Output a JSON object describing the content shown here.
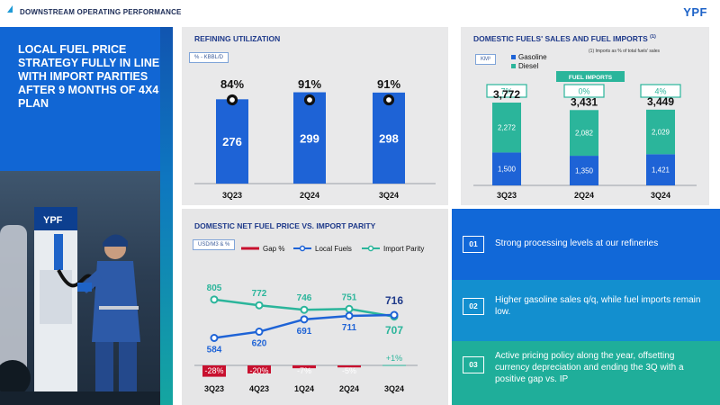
{
  "header": {
    "title": "DOWNSTREAM OPERATING PERFORMANCE",
    "logo": "YPF"
  },
  "headline": "LOCAL FUEL PRICE STRATEGY FULLY IN LINE WITH IMPORT PARITIES AFTER 9 MONTHS OF 4X4 PLAN",
  "photo": {
    "pump_brand": "YPF"
  },
  "colors": {
    "brand_blue": "#1166d4",
    "bar_blue": "#1e63d6",
    "teal": "#2bb59b",
    "red": "#c8102e",
    "panel_gray": "#e9e9ea"
  },
  "refining": {
    "title": "REFINING UTILIZATION",
    "unit": "% - KBBL/D",
    "chart_data": {
      "type": "bar",
      "categories": [
        "3Q23",
        "2Q24",
        "3Q24"
      ],
      "values": [
        276,
        299,
        298
      ],
      "labels": [
        "276",
        "299",
        "298"
      ],
      "utilization": [
        "84%",
        "91%",
        "91%"
      ],
      "ylim": [
        0,
        330
      ]
    }
  },
  "domestic": {
    "title": "DOMESTIC FUELS' SALES AND FUEL IMPORTS",
    "title_sup": "(1)",
    "unit": "KM³",
    "footnote": "(1) Imports as % of total fuels' sales",
    "legend": [
      "Gasoline",
      "Diesel"
    ],
    "imports_label": "FUEL IMPORTS",
    "imports": [
      "7%",
      "0%",
      "4%"
    ],
    "chart_data": {
      "type": "bar",
      "categories": [
        "3Q23",
        "2Q24",
        "3Q24"
      ],
      "series": [
        {
          "name": "Gasoline",
          "values": [
            1500,
            1350,
            1421
          ]
        },
        {
          "name": "Diesel",
          "values": [
            2272,
            2082,
            2029
          ]
        }
      ],
      "totals": [
        3772,
        3431,
        3449
      ],
      "labels": {
        "gasoline": [
          "1,500",
          "1,350",
          "1,421"
        ],
        "diesel": [
          "2,272",
          "2,082",
          "2,029"
        ],
        "totals": [
          "3,772",
          "3,431",
          "3,449"
        ]
      },
      "ylim": [
        0,
        4200
      ]
    }
  },
  "netprice": {
    "title": "DOMESTIC NET FUEL PRICE VS. IMPORT PARITY",
    "unit": "USD/M3 & %",
    "legend": [
      "Gap %",
      "Local Fuels",
      "Import Parity"
    ],
    "chart_data": {
      "type": "line",
      "categories": [
        "3Q23",
        "4Q23",
        "1Q24",
        "2Q24",
        "3Q24"
      ],
      "series": [
        {
          "name": "Local Fuels",
          "values": [
            584,
            620,
            691,
            711,
            716
          ]
        },
        {
          "name": "Import Parity",
          "values": [
            805,
            772,
            746,
            751,
            707
          ]
        },
        {
          "name": "Gap %",
          "values": [
            -28,
            -20,
            -7,
            -5,
            1
          ]
        }
      ],
      "labels": {
        "local": [
          "584",
          "620",
          "691",
          "711",
          "716"
        ],
        "parity": [
          "805",
          "772",
          "746",
          "751",
          "707"
        ],
        "gap": [
          "-28%",
          "-20%",
          "-7%",
          "-5%",
          "+1%"
        ]
      },
      "ylim": [
        540,
        830
      ]
    }
  },
  "bullets": [
    {
      "num": "01",
      "text": "Strong processing levels at our refineries"
    },
    {
      "num": "02",
      "text": "Higher gasoline sales q/q, while fuel imports remain low."
    },
    {
      "num": "03",
      "text": "Active pricing policy along the year, offsetting currency depreciation and ending the 3Q with a positive gap vs. IP"
    }
  ]
}
